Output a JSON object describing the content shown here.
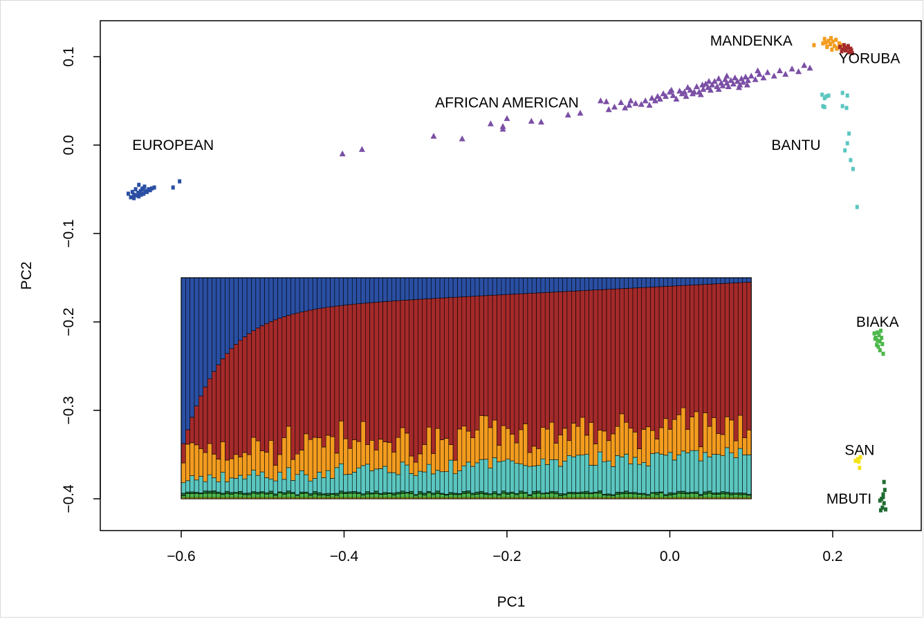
{
  "chart_data": {
    "type": "scatter",
    "title": "",
    "xlabel": "PC1",
    "ylabel": "PC2",
    "xlim": [
      -0.7,
      0.28
    ],
    "ylim": [
      -0.43,
      0.14
    ],
    "x_ticks": [
      "-0.6",
      "-0.4",
      "-0.2",
      "0.0",
      "0.2"
    ],
    "x_tick_values": [
      -0.6,
      -0.4,
      -0.2,
      0.0,
      0.2
    ],
    "y_ticks": [
      "0.1",
      "0.0",
      "-0.1",
      "-0.2",
      "-0.3",
      "-0.4"
    ],
    "y_tick_values": [
      0.1,
      0.0,
      -0.1,
      -0.2,
      -0.3,
      -0.4
    ],
    "grid": false,
    "legend": "none",
    "groups": [
      {
        "label": "EUROPEAN",
        "color": "#2a4fa3",
        "marker": "square",
        "label_pos": [
          -0.61,
          0.0
        ],
        "points": [
          [
            -0.665,
            -0.055
          ],
          [
            -0.662,
            -0.059
          ],
          [
            -0.66,
            -0.053
          ],
          [
            -0.658,
            -0.06
          ],
          [
            -0.656,
            -0.05
          ],
          [
            -0.655,
            -0.057
          ],
          [
            -0.653,
            -0.054
          ],
          [
            -0.652,
            -0.058
          ],
          [
            -0.65,
            -0.052
          ],
          [
            -0.649,
            -0.056
          ],
          [
            -0.647,
            -0.049
          ],
          [
            -0.646,
            -0.055
          ],
          [
            -0.644,
            -0.052
          ],
          [
            -0.642,
            -0.053
          ],
          [
            -0.64,
            -0.05
          ],
          [
            -0.638,
            -0.051
          ],
          [
            -0.636,
            -0.049
          ],
          [
            -0.652,
            -0.045
          ],
          [
            -0.645,
            -0.047
          ],
          [
            -0.633,
            -0.048
          ],
          [
            -0.658,
            -0.056
          ],
          [
            -0.648,
            -0.05
          ],
          [
            -0.61,
            -0.048
          ],
          [
            -0.602,
            -0.041
          ]
        ]
      },
      {
        "label": "AFRICAN AMERICAN",
        "color": "#7b4fa6",
        "marker": "triangle",
        "label_pos": [
          -0.2,
          0.048
        ],
        "points": [
          [
            -0.402,
            -0.01
          ],
          [
            -0.378,
            -0.005
          ],
          [
            -0.29,
            0.01
          ],
          [
            -0.255,
            0.007
          ],
          [
            -0.22,
            0.024
          ],
          [
            -0.205,
            0.018
          ],
          [
            -0.205,
            0.021
          ],
          [
            -0.2,
            0.03
          ],
          [
            -0.17,
            0.027
          ],
          [
            -0.158,
            0.026
          ],
          [
            -0.125,
            0.034
          ],
          [
            -0.11,
            0.036
          ],
          [
            -0.085,
            0.05
          ],
          [
            -0.078,
            0.049
          ],
          [
            -0.075,
            0.04
          ],
          [
            -0.068,
            0.043
          ],
          [
            -0.06,
            0.048
          ],
          [
            -0.055,
            0.042
          ],
          [
            -0.05,
            0.045
          ],
          [
            -0.048,
            0.05
          ],
          [
            -0.042,
            0.047
          ],
          [
            -0.035,
            0.046
          ],
          [
            -0.03,
            0.05
          ],
          [
            -0.025,
            0.045
          ],
          [
            -0.022,
            0.053
          ],
          [
            -0.018,
            0.05
          ],
          [
            -0.012,
            0.052
          ],
          [
            -0.008,
            0.058
          ],
          [
            -0.005,
            0.055
          ],
          [
            0.0,
            0.06
          ],
          [
            0.004,
            0.056
          ],
          [
            0.008,
            0.052
          ],
          [
            0.012,
            0.061
          ],
          [
            0.015,
            0.058
          ],
          [
            0.02,
            0.055
          ],
          [
            0.022,
            0.065
          ],
          [
            0.025,
            0.062
          ],
          [
            0.028,
            0.058
          ],
          [
            0.03,
            0.06
          ],
          [
            0.033,
            0.066
          ],
          [
            0.036,
            0.06
          ],
          [
            0.038,
            0.057
          ],
          [
            0.041,
            0.063
          ],
          [
            0.044,
            0.069
          ],
          [
            0.047,
            0.065
          ],
          [
            0.05,
            0.062
          ],
          [
            0.052,
            0.068
          ],
          [
            0.055,
            0.072
          ],
          [
            0.058,
            0.066
          ],
          [
            0.06,
            0.063
          ],
          [
            0.063,
            0.07
          ],
          [
            0.065,
            0.067
          ],
          [
            0.068,
            0.074
          ],
          [
            0.07,
            0.07
          ],
          [
            0.072,
            0.066
          ],
          [
            0.075,
            0.073
          ],
          [
            0.078,
            0.069
          ],
          [
            0.08,
            0.076
          ],
          [
            0.083,
            0.072
          ],
          [
            0.086,
            0.068
          ],
          [
            0.088,
            0.075
          ],
          [
            0.09,
            0.071
          ],
          [
            0.093,
            0.077
          ],
          [
            0.096,
            0.073
          ],
          [
            0.1,
            0.078
          ],
          [
            0.105,
            0.074
          ],
          [
            0.11,
            0.08
          ],
          [
            0.115,
            0.076
          ],
          [
            0.12,
            0.082
          ],
          [
            0.128,
            0.078
          ],
          [
            0.135,
            0.084
          ],
          [
            0.142,
            0.08
          ],
          [
            0.15,
            0.086
          ],
          [
            0.158,
            0.083
          ],
          [
            0.165,
            0.09
          ],
          [
            0.172,
            0.087
          ],
          [
            0.048,
            0.072
          ],
          [
            0.06,
            0.075
          ],
          [
            0.085,
            0.065
          ],
          [
            0.07,
            0.078
          ],
          [
            0.04,
            0.068
          ],
          [
            0.018,
            0.06
          ],
          [
            0.095,
            0.068
          ],
          [
            0.002,
            0.062
          ],
          [
            -0.015,
            0.055
          ],
          [
            0.108,
            0.084
          ]
        ]
      },
      {
        "label": "MANDENKA",
        "color": "#f39c1f",
        "marker": "square",
        "label_pos": [
          0.1,
          0.118
        ],
        "points": [
          [
            0.177,
            0.113
          ],
          [
            0.188,
            0.115
          ],
          [
            0.19,
            0.12
          ],
          [
            0.193,
            0.111
          ],
          [
            0.195,
            0.118
          ],
          [
            0.197,
            0.114
          ],
          [
            0.199,
            0.108
          ],
          [
            0.2,
            0.117
          ],
          [
            0.202,
            0.112
          ],
          [
            0.204,
            0.119
          ],
          [
            0.206,
            0.11
          ],
          [
            0.208,
            0.115
          ],
          [
            0.21,
            0.113
          ],
          [
            0.192,
            0.116
          ],
          [
            0.198,
            0.121
          ],
          [
            0.205,
            0.109
          ]
        ]
      },
      {
        "label": "YORUBA",
        "color": "#a52a2a",
        "marker": "square",
        "label_pos": [
          0.245,
          0.098
        ],
        "points": [
          [
            0.209,
            0.111
          ],
          [
            0.212,
            0.108
          ],
          [
            0.214,
            0.113
          ],
          [
            0.216,
            0.107
          ],
          [
            0.218,
            0.11
          ],
          [
            0.22,
            0.105
          ],
          [
            0.222,
            0.109
          ],
          [
            0.224,
            0.104
          ],
          [
            0.215,
            0.11
          ],
          [
            0.219,
            0.112
          ],
          [
            0.211,
            0.106
          ],
          [
            0.223,
            0.107
          ]
        ]
      },
      {
        "label": "BANTU",
        "color": "#5bc6c0",
        "marker": "square",
        "label_pos": [
          0.155,
          0.0
        ],
        "points": [
          [
            0.187,
            0.057
          ],
          [
            0.19,
            0.053
          ],
          [
            0.192,
            0.055
          ],
          [
            0.195,
            0.056
          ],
          [
            0.188,
            0.044
          ],
          [
            0.19,
            0.043
          ],
          [
            0.212,
            0.044
          ],
          [
            0.212,
            0.059
          ],
          [
            0.218,
            0.056
          ],
          [
            0.217,
            0.042
          ],
          [
            0.22,
            0.013
          ],
          [
            0.218,
            0.002
          ],
          [
            0.215,
            -0.006
          ],
          [
            0.222,
            -0.017
          ],
          [
            0.225,
            -0.027
          ],
          [
            0.23,
            -0.07
          ]
        ]
      },
      {
        "label": "BIAKA",
        "color": "#4cb84a",
        "marker": "square",
        "label_pos": [
          0.255,
          -0.2
        ],
        "points": [
          [
            0.251,
            -0.213
          ],
          [
            0.253,
            -0.218
          ],
          [
            0.255,
            -0.221
          ],
          [
            0.257,
            -0.215
          ],
          [
            0.259,
            -0.21
          ],
          [
            0.254,
            -0.226
          ],
          [
            0.256,
            -0.228
          ],
          [
            0.258,
            -0.222
          ],
          [
            0.26,
            -0.218
          ],
          [
            0.252,
            -0.219
          ],
          [
            0.261,
            -0.225
          ],
          [
            0.258,
            -0.232
          ],
          [
            0.262,
            -0.236
          ],
          [
            0.255,
            -0.212
          ]
        ]
      },
      {
        "label": "SAN",
        "color": "#f2e21a",
        "marker": "square",
        "label_pos": [
          0.233,
          -0.345
        ],
        "points": [
          [
            0.228,
            -0.357
          ],
          [
            0.231,
            -0.355
          ],
          [
            0.234,
            -0.353
          ],
          [
            0.232,
            -0.358
          ],
          [
            0.233,
            -0.365
          ]
        ]
      },
      {
        "label": "MBUTI",
        "color": "#1f6b32",
        "marker": "square",
        "label_pos": [
          0.22,
          -0.4
        ],
        "points": [
          [
            0.263,
            -0.381
          ],
          [
            0.264,
            -0.39
          ],
          [
            0.262,
            -0.395
          ],
          [
            0.26,
            -0.4
          ],
          [
            0.258,
            -0.402
          ],
          [
            0.263,
            -0.405
          ],
          [
            0.261,
            -0.41
          ],
          [
            0.259,
            -0.413
          ],
          [
            0.265,
            -0.412
          ],
          [
            0.262,
            -0.398
          ]
        ]
      }
    ],
    "inset": {
      "type": "stacked-bar",
      "x_range": [
        -0.6,
        0.1
      ],
      "y_range": [
        -0.4,
        -0.15
      ],
      "n_bars": 130,
      "components": [
        {
          "color": "#f2e21a"
        },
        {
          "color": "#4cb84a"
        },
        {
          "color": "#1f6b32"
        },
        {
          "color": "#5bc6c0"
        },
        {
          "color": "#f39c1f"
        },
        {
          "color": "#a52a2a"
        },
        {
          "color": "#2a4fa3"
        }
      ]
    }
  }
}
